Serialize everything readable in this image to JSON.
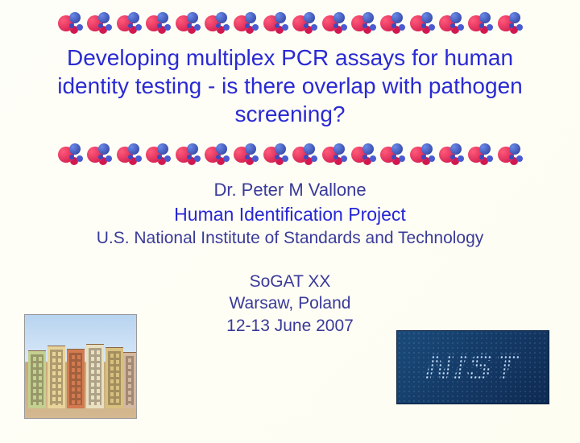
{
  "title": "Developing multiplex PCR assays for human identity testing - is there overlap with pathogen screening?",
  "author": "Dr. Peter M Vallone",
  "project": "Human Identification Project",
  "institute": "U.S. National Institute of Standards and Technology",
  "event": {
    "name": "SoGAT XX",
    "location": "Warsaw, Poland",
    "dates": "12-13 June 2007"
  },
  "logo_text": "NIST",
  "decorative": {
    "dna_blob_count": 16,
    "dna_primary_color": "#c91248",
    "dna_secondary_color": "#2a3a9a",
    "title_color": "#2a2ad4",
    "body_color": "#3a3a9a",
    "project_color": "#2626d6",
    "background_color": "#fefef6",
    "logo_bg": "#143a68"
  }
}
